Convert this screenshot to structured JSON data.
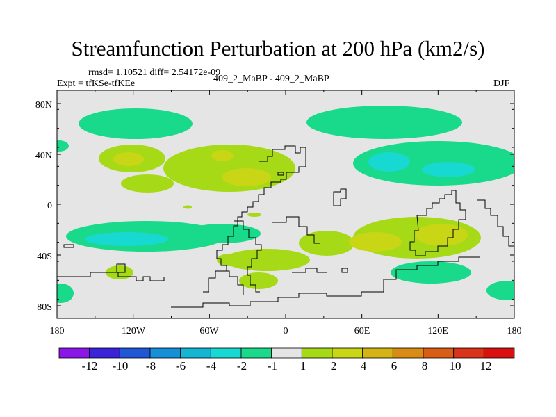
{
  "title": "Streamfunction Perturbation at 200 hPa (km2/s)",
  "stats": "rmsd= 1.10521 diff= 2.54172e-09",
  "experiment": "Expt = tfKSe-tfKEe",
  "case": "409_2_MaBP - 409_2_MaBP",
  "season": "DJF",
  "lat_ticks": [
    "80N",
    "40N",
    "0",
    "40S",
    "80S"
  ],
  "lon_ticks": [
    "180",
    "120W",
    "60W",
    "0",
    "60E",
    "120E",
    "180"
  ],
  "colorbar": {
    "labels": [
      "-12",
      "-10",
      "-8",
      "-6",
      "-4",
      "-2",
      "-1",
      "1",
      "2",
      "4",
      "6",
      "8",
      "10",
      "12"
    ],
    "colors": [
      "#8b16e8",
      "#3a23d9",
      "#1f57d6",
      "#1590d8",
      "#14b6d3",
      "#18d9d2",
      "#19d98a",
      "#e5e5e5",
      "#a6d916",
      "#c8d616",
      "#d4b414",
      "#d98c14",
      "#d95e14",
      "#d9331a",
      "#db1010"
    ]
  },
  "field_colors": {
    "neutral": "#e5e5e5",
    "neg1": "#19d98a",
    "neg2": "#18d9d2",
    "pos1": "#a6d916",
    "pos2": "#c8d616"
  }
}
